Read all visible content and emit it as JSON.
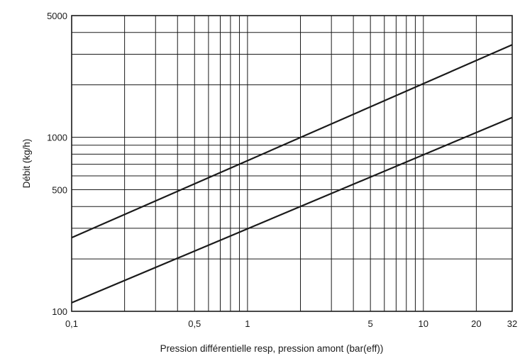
{
  "chart_data": {
    "type": "line",
    "title": "",
    "xlabel": "Pression différentielle resp, pression amont (bar(eff))",
    "ylabel": "Débit (kg/h)",
    "xscale": "log",
    "yscale": "log",
    "xlim": [
      0.1,
      32
    ],
    "ylim": [
      100,
      5000
    ],
    "grid": true,
    "x_ticks": [
      0.1,
      0.5,
      1,
      5,
      10,
      20,
      32
    ],
    "x_tick_labels": [
      "0,1",
      "0,5",
      "1",
      "5",
      "10",
      "20",
      "32"
    ],
    "y_ticks": [
      100,
      500,
      1000,
      5000
    ],
    "y_tick_labels": [
      "100",
      "500",
      "1000",
      "5000"
    ],
    "x_gridlines": [
      0.2,
      0.3,
      0.4,
      0.5,
      0.6,
      0.7,
      0.8,
      0.9,
      1,
      2,
      3,
      4,
      5,
      6,
      7,
      8,
      9,
      10,
      20
    ],
    "y_gridlines": [
      200,
      300,
      400,
      500,
      600,
      700,
      800,
      900,
      1000,
      2000,
      3000,
      4000
    ],
    "series": [
      {
        "x": [
          0.1,
          32
        ],
        "y": [
          265,
          3400
        ]
      },
      {
        "x": [
          0.1,
          32
        ],
        "y": [
          112,
          1300
        ]
      }
    ]
  }
}
